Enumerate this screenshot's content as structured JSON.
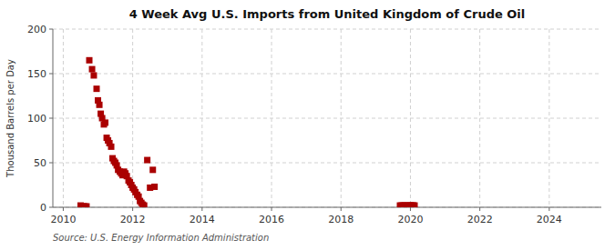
{
  "chart_data": {
    "type": "scatter",
    "title": "4 Week Avg U.S. Imports from United Kingdom of Crude Oil",
    "ylabel": "Thousand Barrels per Day",
    "annotations": [
      "Source: U.S. Energy Information Administration"
    ],
    "color": "#aa0000",
    "marker": "square",
    "grid": true,
    "xlim": [
      2009.7,
      2025.5
    ],
    "ylim": [
      0,
      200
    ],
    "xticks": [
      2010,
      2012,
      2014,
      2016,
      2018,
      2020,
      2022,
      2024
    ],
    "yticks": [
      0,
      50,
      100,
      150,
      200
    ],
    "x": [
      2010.75,
      2010.83,
      2010.88,
      2010.96,
      2011.0,
      2011.04,
      2011.08,
      2011.12,
      2011.17,
      2011.21,
      2011.25,
      2011.29,
      2011.33,
      2011.38,
      2011.42,
      2011.46,
      2011.5,
      2011.54,
      2011.58,
      2011.63,
      2011.67,
      2011.71,
      2011.75,
      2011.79,
      2011.83,
      2011.88,
      2011.92,
      2011.96,
      2012.0,
      2012.04,
      2012.08,
      2012.13,
      2012.17,
      2012.21,
      2012.25,
      2012.29,
      2012.33,
      2012.42,
      2012.5,
      2012.58,
      2012.63,
      2010.5,
      2010.58,
      2010.62,
      2010.67,
      2019.7,
      2019.75,
      2019.8,
      2019.85,
      2019.9,
      2019.95,
      2020.0,
      2020.04,
      2020.08,
      2020.12
    ],
    "values": [
      165,
      155,
      148,
      133,
      120,
      115,
      105,
      100,
      93,
      95,
      78,
      75,
      72,
      68,
      55,
      52,
      50,
      47,
      42,
      40,
      38,
      36,
      40,
      38,
      35,
      30,
      28,
      25,
      22,
      20,
      17,
      14,
      12,
      7,
      5,
      3,
      2,
      53,
      22,
      42,
      23,
      2,
      1,
      1,
      1,
      2,
      2,
      2,
      2,
      2,
      2,
      2,
      2,
      2,
      2
    ]
  }
}
